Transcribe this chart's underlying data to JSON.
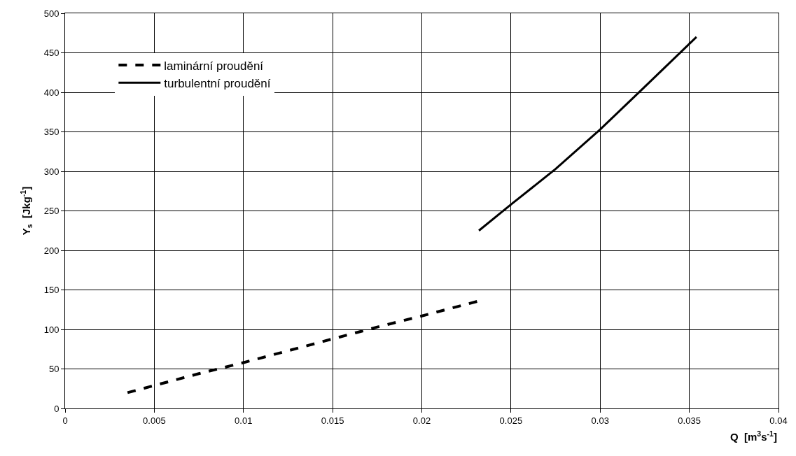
{
  "chart_data": {
    "type": "line",
    "xlabel": "Q  [m$^{3}$s$^{-1}$]",
    "ylabel": "Y$_{s}$  [Jkg$^{-1}$]",
    "series": [
      {
        "name": "laminární proudění",
        "color": "#000000",
        "line_style": "dashed",
        "x": [
          0.0035,
          0.005,
          0.0075,
          0.01,
          0.0125,
          0.015,
          0.0175,
          0.02,
          0.0232
        ],
        "values": [
          20,
          29,
          44,
          58,
          73,
          88,
          103,
          117,
          136
        ]
      },
      {
        "name": "turbulentní proudění",
        "color": "#000000",
        "line_style": "solid",
        "x": [
          0.0232,
          0.025,
          0.0275,
          0.03,
          0.0325,
          0.0354
        ],
        "values": [
          225,
          258,
          303,
          353,
          407,
          470
        ]
      }
    ],
    "xlim": [
      0,
      0.04
    ],
    "xticks": [
      0,
      0.005,
      0.01,
      0.015,
      0.02,
      0.025,
      0.03,
      0.035,
      0.04
    ],
    "ylim": [
      0,
      500
    ],
    "yticks": [
      0,
      50,
      100,
      150,
      200,
      250,
      300,
      350,
      400,
      450,
      500
    ],
    "grid": true,
    "legend": "top left",
    "marker": "none"
  }
}
